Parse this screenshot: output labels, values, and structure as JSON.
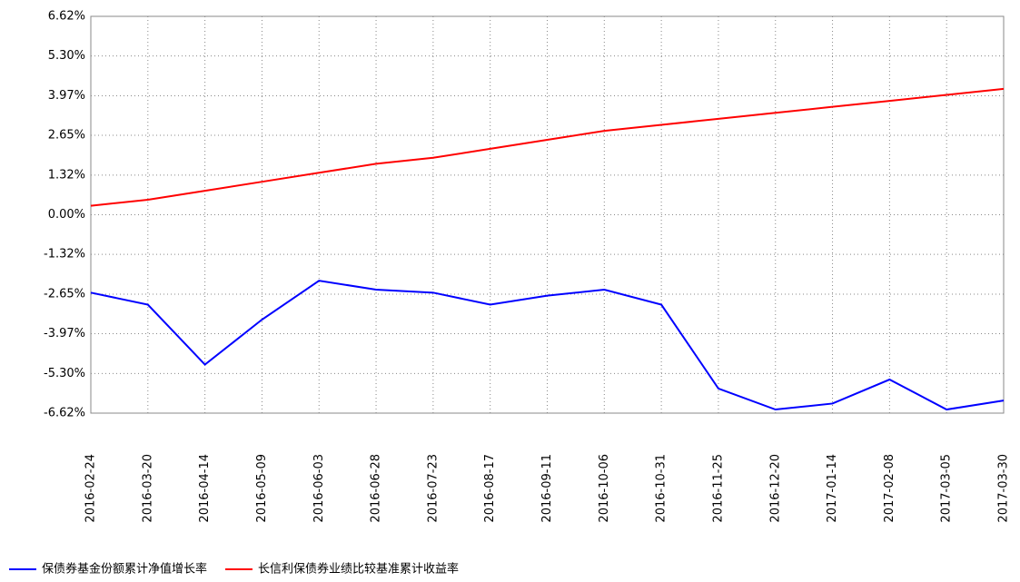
{
  "chart_data": {
    "type": "line",
    "categories": [
      "2016-02-24",
      "2016-03-20",
      "2016-04-14",
      "2016-05-09",
      "2016-06-03",
      "2016-06-28",
      "2016-07-23",
      "2016-08-17",
      "2016-09-11",
      "2016-10-06",
      "2016-10-31",
      "2016-11-25",
      "2016-12-20",
      "2017-01-14",
      "2017-02-08",
      "2017-03-05",
      "2017-03-30"
    ],
    "series": [
      {
        "name": "保债券基金份额累计净值增长率",
        "color": "#0000ff",
        "values": [
          -2.6,
          -3.0,
          -5.0,
          -3.5,
          -2.2,
          -2.5,
          -2.6,
          -3.0,
          -2.7,
          -2.5,
          -3.0,
          -5.8,
          -6.5,
          -6.3,
          -5.5,
          -6.5,
          -6.2
        ]
      },
      {
        "name": "长信利保债券业绩比较基准累计收益率",
        "color": "#ff0000",
        "values": [
          0.3,
          0.5,
          0.8,
          1.1,
          1.4,
          1.7,
          1.9,
          2.2,
          2.5,
          2.8,
          3.0,
          3.2,
          3.4,
          3.6,
          3.8,
          4.0,
          4.2
        ]
      }
    ],
    "ylim": [
      -6.62,
      6.62
    ],
    "yticks": [
      {
        "value": -6.62,
        "label": "-6.62%"
      },
      {
        "value": -5.3,
        "label": "-5.30%"
      },
      {
        "value": -3.97,
        "label": "-3.97%"
      },
      {
        "value": -2.65,
        "label": "-2.65%"
      },
      {
        "value": -1.32,
        "label": "-1.32%"
      },
      {
        "value": 0,
        "label": "0.00%"
      },
      {
        "value": 1.32,
        "label": "1.32%"
      },
      {
        "value": 2.65,
        "label": "2.65%"
      },
      {
        "value": 3.97,
        "label": "3.97%"
      },
      {
        "value": 5.3,
        "label": "5.30%"
      },
      {
        "value": 6.62,
        "label": "6.62%"
      }
    ],
    "grid": true
  }
}
